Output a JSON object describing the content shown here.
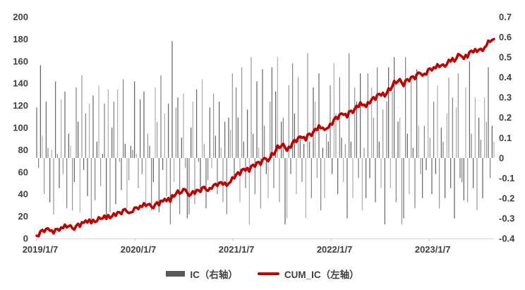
{
  "chart_data": {
    "type": "combo",
    "title": "",
    "x_tick_labels": [
      "2019/1/7",
      "2020/1/7",
      "2021/1/7",
      "2022/1/7",
      "2023/1/7"
    ],
    "left_axis": {
      "min": 0,
      "max": 200,
      "ticks": [
        "200",
        "180",
        "160",
        "140",
        "120",
        "100",
        "80",
        "60",
        "40",
        "20",
        "0"
      ],
      "series": "CUM_IC"
    },
    "right_axis": {
      "min": -0.4,
      "max": 0.7,
      "ticks": [
        "0.7",
        "0.6",
        "0.5",
        "0.4",
        "0.3",
        "0.2",
        "0.1",
        "0",
        "-0.1",
        "-0.2",
        "-0.3",
        "-0.4"
      ],
      "series": "IC"
    },
    "weeks_per_year": 52.14,
    "cum_scale": 10,
    "series": [
      {
        "name": "IC（右轴）",
        "type": "bar",
        "axis": "right",
        "values": [
          0.25,
          -0.05,
          0.46,
          0.11,
          -0.18,
          0.28,
          0.05,
          -0.22,
          0.04,
          -0.28,
          0.38,
          0.02,
          -0.15,
          0.29,
          -0.08,
          0.33,
          -0.25,
          0.12,
          0.06,
          -0.26,
          -0.12,
          0.35,
          0.18,
          -0.27,
          0.41,
          -0.06,
          0.22,
          -0.19,
          0.27,
          -0.33,
          0.31,
          -0.21,
          0.08,
          0.36,
          -0.14,
          0.02,
          0.27,
          -0.3,
          0.34,
          -0.27,
          0.15,
          0.28,
          -0.23,
          0.34,
          -0.02,
          -0.16,
          0.39,
          0.07,
          -0.25,
          -0.11,
          0.06,
          0.04,
          0.38,
          0.02,
          -0.15,
          0.29,
          -0.08,
          0.33,
          -0.25,
          0.12,
          0.06,
          -0.26,
          -0.12,
          0.35,
          0.18,
          -0.27,
          0.41,
          -0.06,
          0.22,
          -0.19,
          0.27,
          -0.33,
          0.58,
          -0.12,
          0.25,
          0.3,
          -0.28,
          0.1,
          0.32,
          -0.05,
          -0.3,
          -0.28,
          0.15,
          0.28,
          -0.23,
          0.34,
          -0.02,
          -0.16,
          0.39,
          0.07,
          -0.25,
          -0.11,
          0.25,
          -0.05,
          0.32,
          0.11,
          -0.18,
          0.28,
          0.05,
          -0.22,
          0.18,
          -0.28,
          0.2,
          0.14,
          0.42,
          -0.1,
          0.35,
          0.2,
          -0.22,
          0.45,
          0.08,
          -0.15,
          0.24,
          -0.33,
          0.5,
          0.12,
          -0.18,
          0.38,
          0.05,
          -0.25,
          0.44,
          0.16,
          -0.08,
          -0.2,
          0.28,
          0.45,
          -0.15,
          0.33,
          0.5,
          -0.22,
          0.18,
          0.2,
          -0.33,
          -0.3,
          0.36,
          -0.08,
          0.47,
          0.22,
          -0.18,
          0.4,
          0.1,
          -0.12,
          0.07,
          -0.3,
          0.52,
          0.08,
          -0.2,
          0.35,
          0.28,
          -0.1,
          0.42,
          -0.26,
          0.05,
          -0.2,
          0.12,
          0.08,
          0.36,
          -0.08,
          0.47,
          0.22,
          -0.18,
          0.4,
          0.1,
          -0.12,
          0.07,
          -0.3,
          0.52,
          0.08,
          -0.2,
          0.35,
          0.28,
          -0.1,
          0.42,
          -0.26,
          0.05,
          -0.2,
          0.42,
          -0.1,
          0.35,
          0.2,
          -0.22,
          0.45,
          0.08,
          -0.15,
          0.24,
          -0.33,
          0.28,
          0.45,
          -0.15,
          0.33,
          0.5,
          -0.22,
          0.18,
          0.2,
          -0.33,
          -0.3,
          0.5,
          0.12,
          -0.18,
          0.38,
          0.05,
          -0.25,
          0.44,
          0.16,
          -0.08,
          -0.2,
          0.16,
          -0.06,
          0.45,
          0.1,
          -0.18,
          0.28,
          -0.08,
          0.36,
          -0.25,
          0.15,
          0.08,
          -0.2,
          0.22,
          0.4,
          -0.15,
          0.3,
          -0.3,
          0.25,
          0.42,
          -0.1,
          -0.12,
          -0.21,
          0.35,
          -0.22,
          0.48,
          0.12,
          -0.15,
          0.3,
          -0.26,
          0.2,
          0.09,
          -0.2,
          0.3,
          0.18,
          0.45,
          -0.1,
          0.16,
          0.08
        ]
      },
      {
        "name": "CUM_IC（左轴）",
        "type": "line",
        "axis": "left",
        "derivation": "cumulative sum of IC values x 10",
        "end_value": 180
      }
    ],
    "colors": {
      "line": "#c00000",
      "bars": [
        "#595959",
        "#a6a6a6",
        "#737373",
        "#8c8c8c",
        "#4f4f4f"
      ],
      "axis_text": "#404040",
      "axis_line": "#d9d9d9",
      "tick_mark": "#bfbfbf"
    }
  },
  "legend": {
    "items": [
      {
        "label": "IC（右轴）",
        "swatch": "bar"
      },
      {
        "label": "CUM_IC（左轴）",
        "swatch": "line"
      }
    ]
  }
}
